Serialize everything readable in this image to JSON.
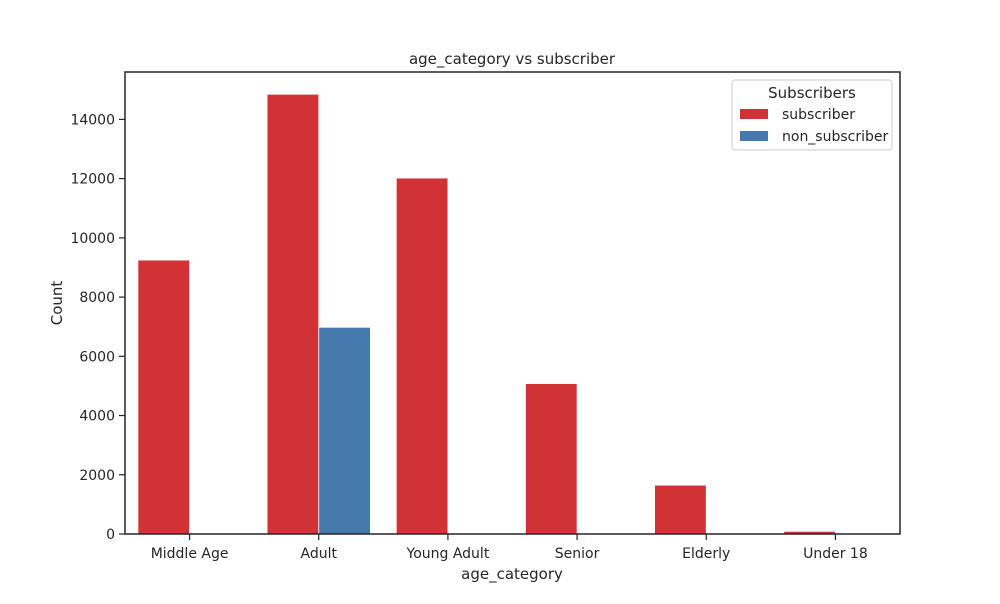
{
  "chart_data": {
    "type": "bar",
    "title": "age_category vs subscriber",
    "xlabel": "age_category",
    "ylabel": "Count",
    "categories": [
      "Middle Age",
      "Adult",
      "Young Adult",
      "Senior",
      "Elderly",
      "Under 18"
    ],
    "series": [
      {
        "name": "subscriber",
        "color": "#d03235",
        "values": [
          9250,
          14850,
          12020,
          5080,
          1650,
          90
        ]
      },
      {
        "name": "non_subscriber",
        "color": "#4679ab",
        "values": [
          0,
          6980,
          0,
          0,
          0,
          0
        ]
      }
    ],
    "ylim": [
      0,
      15600
    ],
    "yticks": [
      0,
      2000,
      4000,
      6000,
      8000,
      10000,
      12000,
      14000
    ],
    "grid": false,
    "legend": {
      "title": "Subscribers",
      "placement": "top-right"
    }
  }
}
